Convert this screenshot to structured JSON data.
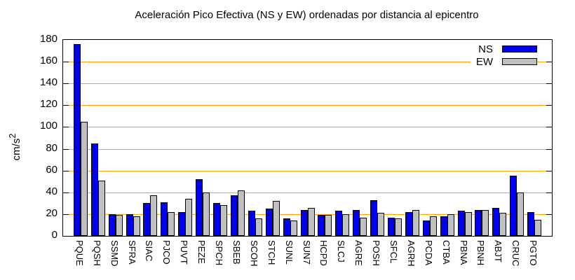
{
  "chart_data": {
    "type": "bar",
    "title": "Aceleración Pico Efectiva (NS y EW) ordenadas por distancia al epicentro",
    "ylabel": "cm/s²",
    "ylabel_base": "cm/s",
    "ylabel_exp": "2",
    "xlabel": "",
    "ylim": [
      0,
      180
    ],
    "yticks": [
      0,
      20,
      40,
      60,
      80,
      100,
      120,
      140,
      160,
      180
    ],
    "grid": "horizontal",
    "grid_color": "#ffa500",
    "legend_position": "top-right-inside",
    "categories": [
      "PQUE",
      "PQSH",
      "SSMD",
      "SFRA",
      "SIAC",
      "PJCO",
      "PUVT",
      "PEZE",
      "SPCH",
      "SBEB",
      "SCOH",
      "STCH",
      "SUNL",
      "SUN7",
      "HCPD",
      "SLCJ",
      "AGRE",
      "POSH",
      "SFCL",
      "AGRH",
      "PCDA",
      "CTBA",
      "PBNA",
      "PBNH",
      "ABJT",
      "CRUC",
      "PGTO"
    ],
    "series": [
      {
        "name": "NS",
        "color": "#0000ee",
        "values": [
          176,
          85,
          20,
          20,
          30,
          31,
          22,
          52,
          30,
          37,
          23,
          25,
          16,
          24,
          19,
          23,
          24,
          33,
          17,
          22,
          14,
          18,
          23,
          24,
          26,
          55,
          22
        ]
      },
      {
        "name": "EW",
        "color": "#c0c0c0",
        "values": [
          105,
          51,
          19,
          18,
          37,
          22,
          34,
          40,
          28,
          42,
          16,
          32,
          14,
          26,
          19,
          20,
          17,
          21,
          16,
          24,
          18,
          20,
          22,
          24,
          21,
          40,
          15
        ]
      }
    ]
  }
}
